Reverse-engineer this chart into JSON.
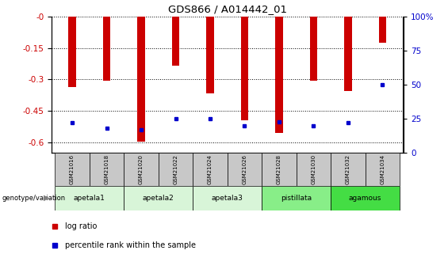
{
  "title": "GDS866 / A014442_01",
  "samples": [
    "GSM21016",
    "GSM21018",
    "GSM21020",
    "GSM21022",
    "GSM21024",
    "GSM21026",
    "GSM21028",
    "GSM21030",
    "GSM21032",
    "GSM21034"
  ],
  "log_ratio": [
    -0.335,
    -0.305,
    -0.595,
    -0.235,
    -0.365,
    -0.495,
    -0.555,
    -0.305,
    -0.355,
    -0.125
  ],
  "percentile_rank": [
    22,
    18,
    17,
    25,
    25,
    20,
    23,
    20,
    22,
    50
  ],
  "group_defs": [
    {
      "name": "apetala1",
      "indices": [
        0,
        1
      ],
      "color": "#d8f5d8"
    },
    {
      "name": "apetala2",
      "indices": [
        2,
        3
      ],
      "color": "#d8f5d8"
    },
    {
      "name": "apetala3",
      "indices": [
        4,
        5
      ],
      "color": "#d8f5d8"
    },
    {
      "name": "pistillata",
      "indices": [
        6,
        7
      ],
      "color": "#88ee88"
    },
    {
      "name": "agamous",
      "indices": [
        8,
        9
      ],
      "color": "#44dd44"
    }
  ],
  "ylim_left": [
    -0.65,
    0.0
  ],
  "ylim_right": [
    0,
    100
  ],
  "yticks_left": [
    0.0,
    -0.15,
    -0.3,
    -0.45,
    -0.6
  ],
  "yticks_right": [
    0,
    25,
    50,
    75,
    100
  ],
  "bar_color": "#cc0000",
  "marker_color": "#0000cc",
  "sample_box_color": "#c8c8c8",
  "genotype_label": "genotype/variation"
}
